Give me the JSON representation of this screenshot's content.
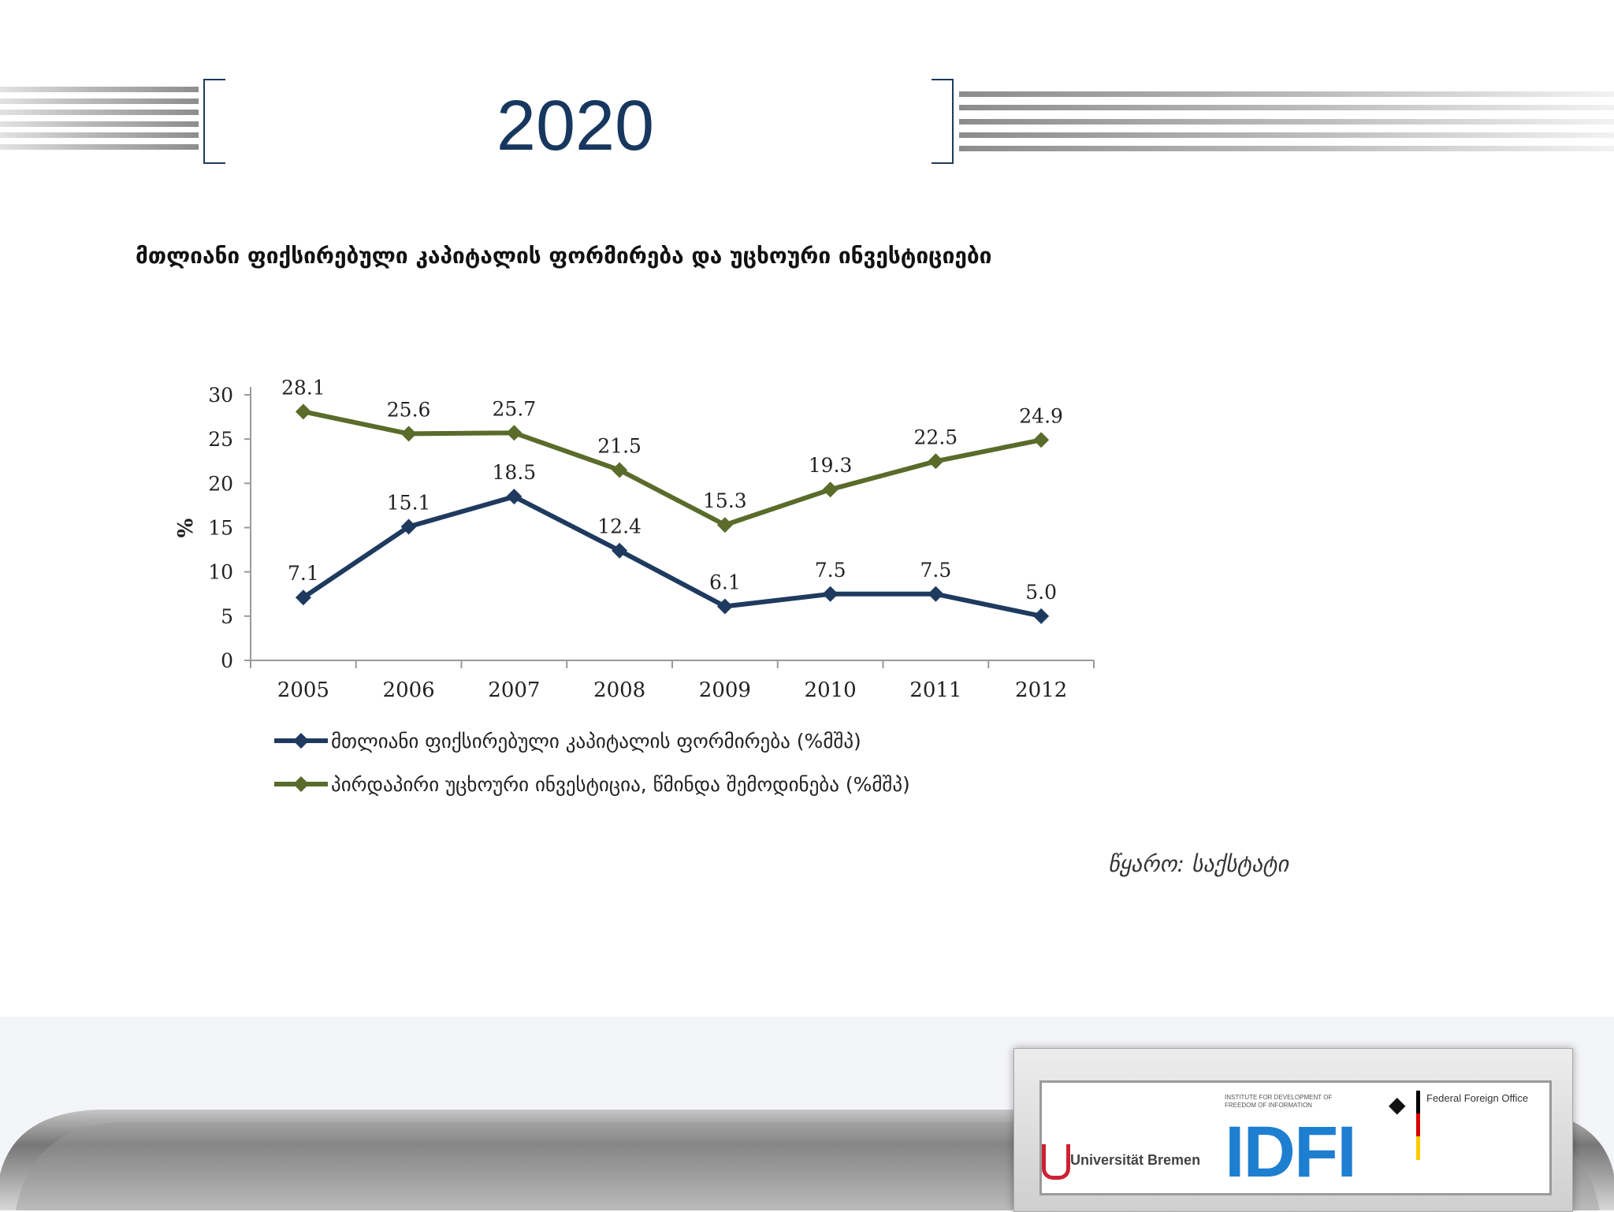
{
  "slide": {
    "title": "2020",
    "source_note": "წყარო: საქსტატი"
  },
  "chart_data": {
    "type": "line",
    "title": "მთლიანი ფიქსირებული კაპიტალის ფორმირება და უცხოური ინვესტიციები",
    "xlabel": "",
    "ylabel": "%",
    "ylim": [
      0,
      30
    ],
    "yticks": [
      0,
      5,
      10,
      15,
      20,
      25,
      30
    ],
    "categories": [
      "2005",
      "2006",
      "2007",
      "2008",
      "2009",
      "2010",
      "2011",
      "2012"
    ],
    "series": [
      {
        "name": "მთლიანი ფიქსირებული კაპიტალის ფორმირება (%მშპ)",
        "color": "#1f3a5f",
        "values": [
          7.1,
          15.1,
          18.5,
          12.4,
          6.1,
          7.5,
          7.5,
          5.0
        ],
        "labels": [
          "7.1",
          "15.1",
          "18.5",
          "12.4",
          "6.1",
          "7.5",
          "7.5",
          "5.0"
        ]
      },
      {
        "name": "პირდაპირი უცხოური ინვესტიცია, წმინდა შემოდინება (%მშპ)",
        "color": "#5a6b2a",
        "values": [
          28.1,
          25.6,
          25.7,
          21.5,
          15.3,
          19.3,
          22.5,
          24.9
        ],
        "labels": [
          "28.1",
          "25.6",
          "25.7",
          "21.5",
          "15.3",
          "19.3",
          "22.5",
          "24.9"
        ]
      }
    ],
    "grid": false,
    "legend_position": "bottom"
  },
  "logos": {
    "university": "Universität Bremen",
    "idfi": "IDFI",
    "idfi_subtitle": "INSTITUTE FOR DEVELOPMENT OF FREEDOM OF INFORMATION",
    "foreign_office": "Federal Foreign Office",
    "eagle_icon": "eagle-icon"
  }
}
